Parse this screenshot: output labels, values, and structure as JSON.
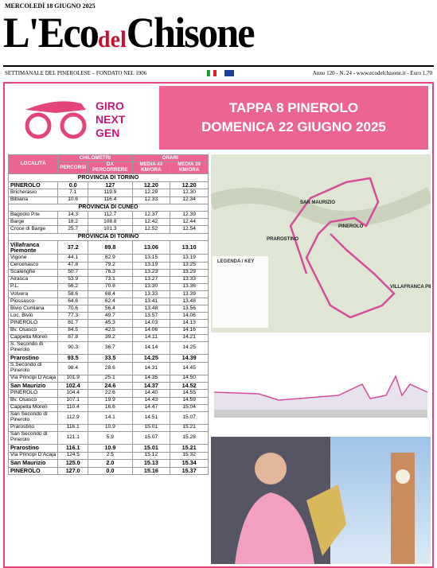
{
  "header": {
    "date": "MERCOLEDÌ 18 GIUGNO 2025",
    "title_parts": [
      "L'Eco",
      "del",
      "Chisone"
    ],
    "tagline": "SETTIMANALE DEL PINEROLESE – FONDATO NEL 1906",
    "issue": "Anno 120 - N. 24 - www.ecodelchisone.it - Euro 1,70"
  },
  "banner": {
    "logo_lines": [
      "GIRO",
      "NEXT",
      "GEN"
    ],
    "headline_lines": [
      "TAPPA 8 PINEROLO",
      "DOMENICA 22 GIUGNO 2025"
    ]
  },
  "table": {
    "col_locality": "LOCALITÀ",
    "group_km": "CHILOMETRI",
    "group_times": "ORARI",
    "columns": [
      "PERCORSI",
      "DA PERCORRERE",
      "MEDIA 43 KM/ORA",
      "MEDIA 39 KM/ORA"
    ],
    "sections": [
      {
        "title": "PROVINCIA DI TORINO",
        "rows": [
          {
            "cells": [
              "PINEROLO",
              "0.0",
              "127",
              "12.20",
              "12.20"
            ],
            "bold": true
          },
          {
            "cells": [
              "Bricherasio",
              "7.1",
              "119.9",
              "12.29",
              "12.30"
            ]
          },
          {
            "cells": [
              "Bibiana",
              "10.6",
              "116.4",
              "12.33",
              "12.34"
            ]
          }
        ]
      },
      {
        "title": "PROVINCIA DI CUNEO",
        "rows": [
          {
            "cells": [
              "Bagnolo P.te",
              "14.3",
              "112.7",
              "12.37",
              "12.39"
            ]
          },
          {
            "cells": [
              "Barge",
              "18.2",
              "108.8",
              "12.42",
              "12.44"
            ]
          },
          {
            "cells": [
              "Croce di Barge",
              "25.7",
              "101.3",
              "12.52",
              "12.54"
            ]
          }
        ]
      },
      {
        "title": "PROVINCIA DI TORINO",
        "rows": [
          {
            "cells": [
              "Villafranca Piemonte",
              "37.2",
              "89.8",
              "13.06",
              "13.10"
            ],
            "bold": true
          },
          {
            "cells": [
              "Vigone",
              "44.1",
              "82.9",
              "13.15",
              "13.19"
            ]
          },
          {
            "cells": [
              "Cercenasco",
              "47.8",
              "79.2",
              "13.19",
              "13.25"
            ]
          },
          {
            "cells": [
              "Scalenghe",
              "50.7",
              "76.3",
              "13.23",
              "13.29"
            ]
          },
          {
            "cells": [
              "Airasca",
              "53.9",
              "73.1",
              "13.27",
              "13.33"
            ]
          },
          {
            "cells": [
              "P.L.",
              "56.2",
              "70.8",
              "13.30",
              "13.36"
            ]
          },
          {
            "cells": [
              "Volvera",
              "58.6",
              "68.4",
              "13.33",
              "13.39"
            ]
          },
          {
            "cells": [
              "Piossasco",
              "64.6",
              "62.4",
              "13.41",
              "13.48"
            ]
          },
          {
            "cells": [
              "Bivio Cumiana",
              "70.6",
              "56.4",
              "13.48",
              "13.56"
            ]
          },
          {
            "cells": [
              "Loc. Bivio",
              "77.3",
              "49.7",
              "13.57",
              "14.06"
            ]
          },
          {
            "cells": [
              "PINEROLO",
              "81.7",
              "45.3",
              "14.03",
              "14.13"
            ]
          },
          {
            "cells": [
              "Bv. Osasco",
              "84.5",
              "42.5",
              "14.06",
              "14.16"
            ]
          },
          {
            "cells": [
              "Cappella Moreri",
              "87.8",
              "39.2",
              "14.11",
              "14.21"
            ]
          },
          {
            "cells": [
              "S. Secondo di Pinerolo",
              "90.3",
              "36.7",
              "14.14",
              "14.25"
            ]
          },
          {
            "cells": [
              "Prarostino",
              "93.5",
              "33.5",
              "14.25",
              "14.39"
            ],
            "bold": true
          },
          {
            "cells": [
              "S.Secondo di Pinerolo",
              "98.4",
              "28.6",
              "14.31",
              "14.45"
            ]
          },
          {
            "cells": [
              "Via Principi D'Acaja",
              "101.9",
              "25.1",
              "14.35",
              "14.50"
            ]
          },
          {
            "cells": [
              "San Maurizio",
              "102.4",
              "24.6",
              "14.37",
              "14.52"
            ],
            "bold": true
          },
          {
            "cells": [
              "PINEROLO",
              "104.4",
              "22.6",
              "14.40",
              "14.55"
            ]
          },
          {
            "cells": [
              "Bv. Osasco",
              "107.1",
              "19.9",
              "14.43",
              "14.59"
            ]
          },
          {
            "cells": [
              "Cappella Moreri",
              "110.4",
              "16.6",
              "14.47",
              "15.04"
            ]
          },
          {
            "cells": [
              "San Secondo di Pinerolo",
              "112.9",
              "14.1",
              "14.51",
              "15.07"
            ]
          },
          {
            "cells": [
              "Prarostino",
              "116.1",
              "10.9",
              "15.01",
              "15.21"
            ]
          },
          {
            "cells": [
              "San Secondo di Pinerolo",
              "121.1",
              "5.9",
              "15.07",
              "15.28"
            ]
          },
          {
            "cells": [
              "Prarostino",
              "116.1",
              "10.9",
              "15.01",
              "15.21"
            ],
            "bold": true
          },
          {
            "cells": [
              "Via Principi D'Acaja",
              "124.5",
              "2.5",
              "15.12",
              "15.32"
            ]
          },
          {
            "cells": [
              "San Maurizio",
              "125.0",
              "2.0",
              "15.13",
              "15.34"
            ],
            "bold": true
          },
          {
            "cells": [
              "PINEROLO",
              "127.0",
              "0.0",
              "15.16",
              "15.37"
            ],
            "bold": true
          }
        ]
      }
    ]
  },
  "map": {
    "labels": [
      "SAN MAURIZIO",
      "PINEROLO",
      "PRAROSTINO",
      "VILLAFRANCA PIEMONTE",
      "LEGENDA / KEY"
    ]
  }
}
